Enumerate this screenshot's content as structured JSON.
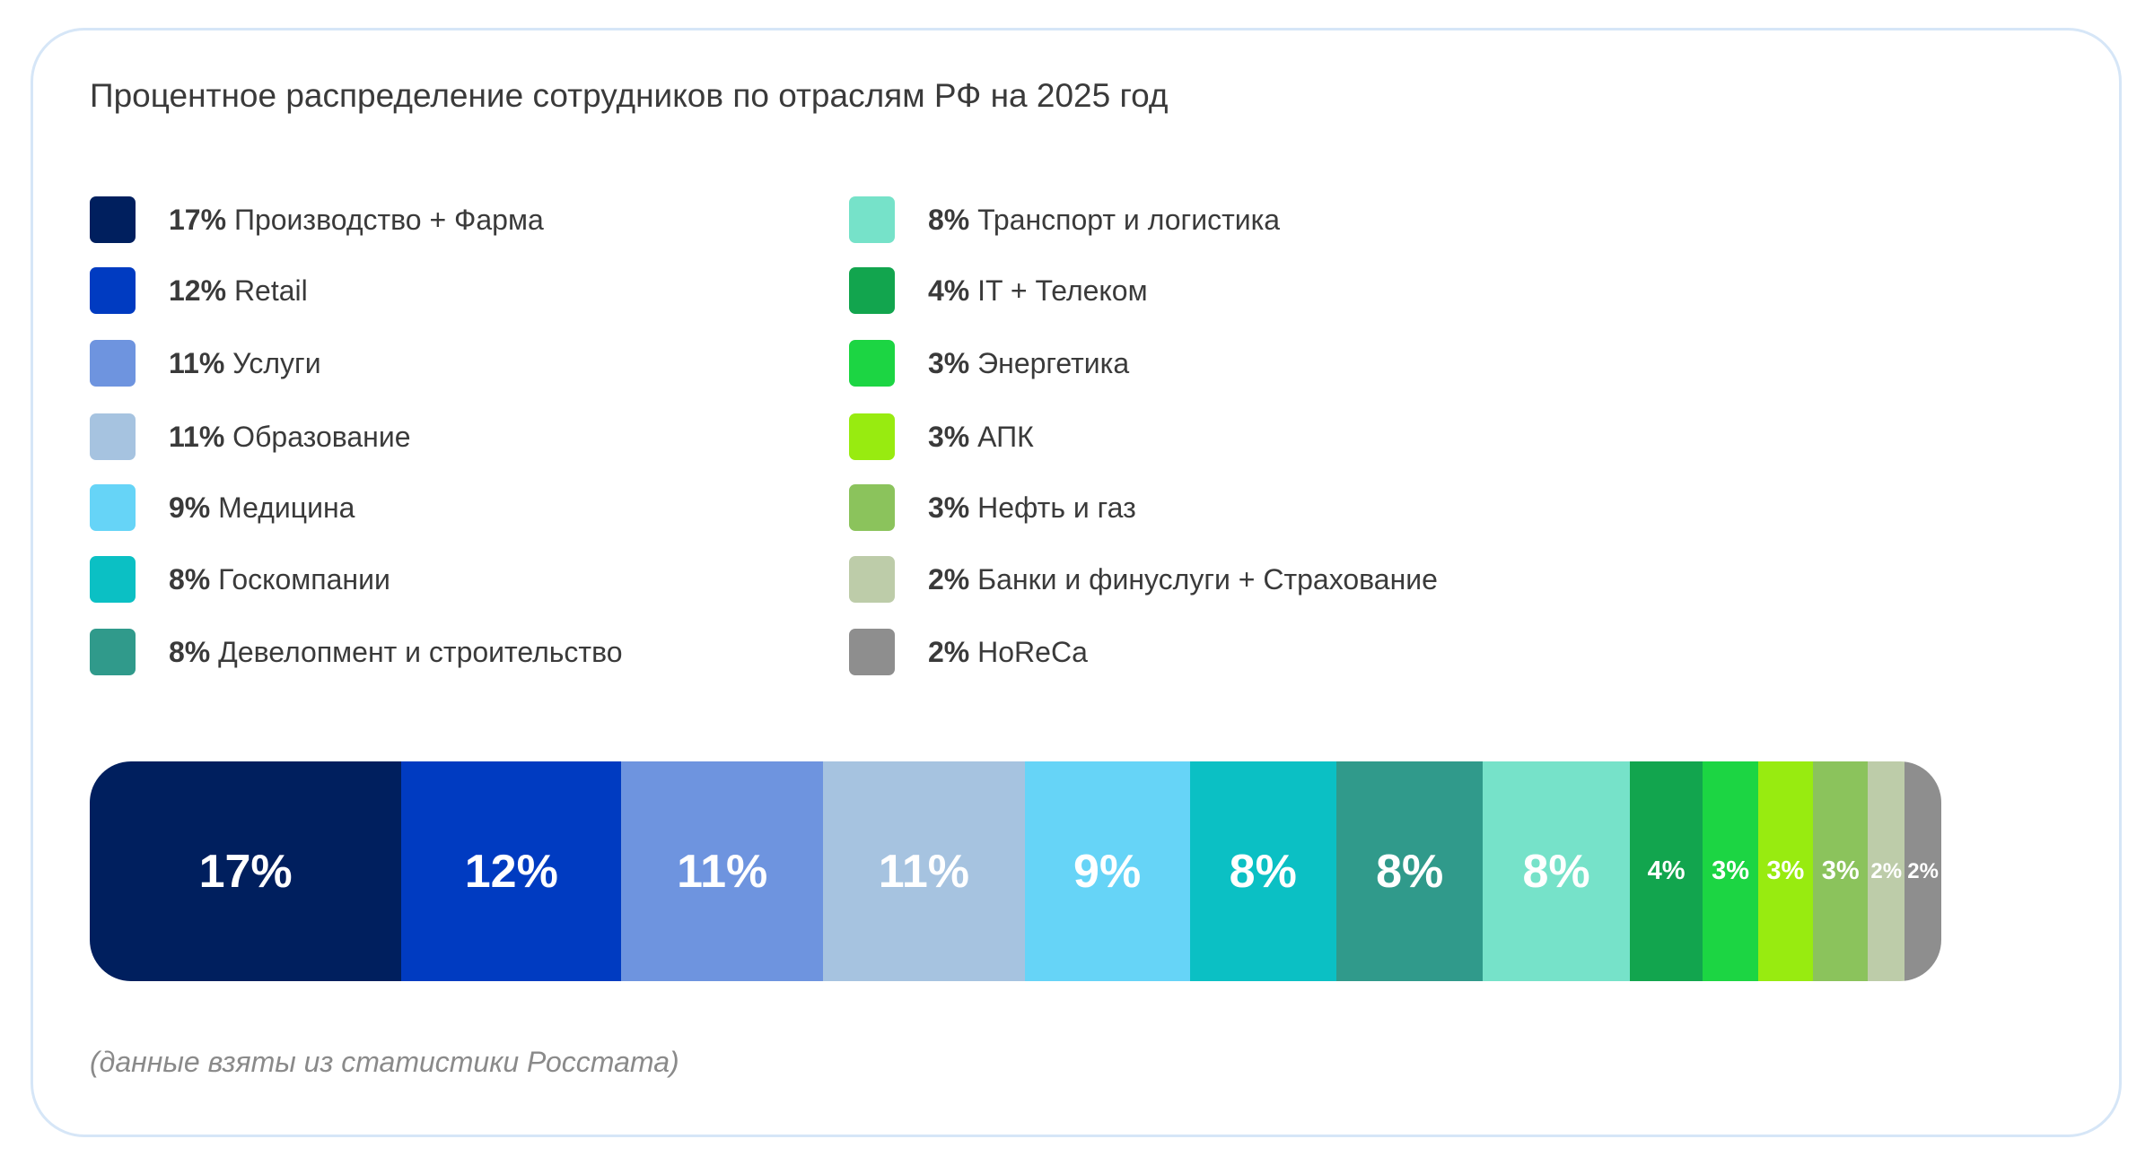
{
  "chart_data": {
    "type": "bar",
    "orientation": "stacked-horizontal",
    "title": "Процентное распределение сотрудников по отраслям РФ на 2025 год",
    "unit": "%",
    "legend_placement": "top",
    "categories": [
      "Производство + Фарма",
      "Retail",
      "Услуги",
      "Образование",
      "Медицина",
      "Госкомпании",
      "Девелопмент и строительство",
      "Транспорт и логистика",
      "IT + Телеком",
      "Энергетика",
      "АПК",
      "Нефть и газ",
      "Банки и финуслуги + Страхование",
      "HoReCa"
    ],
    "values": [
      17,
      12,
      11,
      11,
      9,
      8,
      8,
      8,
      4,
      3,
      3,
      3,
      2,
      2
    ],
    "labels": [
      "17%",
      "12%",
      "11%",
      "11%",
      "9%",
      "8%",
      "8%",
      "8%",
      "4%",
      "3%",
      "3%",
      "3%",
      "2%",
      "2%"
    ],
    "colors": [
      "#001f5e",
      "#003bc1",
      "#6e94df",
      "#a6c3e0",
      "#66d4f7",
      "#0bc0c4",
      "#309a8b",
      "#76e2c9",
      "#12a54e",
      "#1cd543",
      "#98eb10",
      "#8bc35c",
      "#bdcca9",
      "#8e8e8e"
    ],
    "note": "(данные взяты из статистики Росстата)"
  }
}
